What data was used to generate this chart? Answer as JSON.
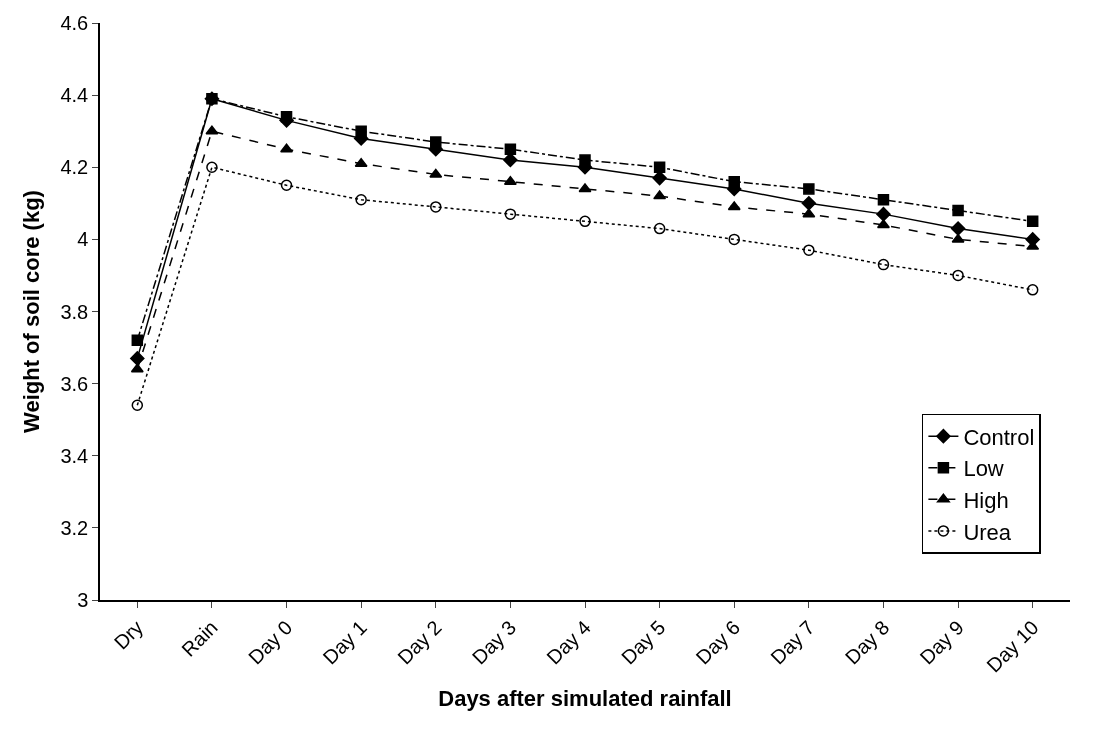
{
  "chart_data": {
    "type": "line",
    "xlabel": "Days after simulated rainfall",
    "ylabel": "Weight of soil core (kg)",
    "categories": [
      "Dry",
      "Rain",
      "Day 0",
      "Day 1",
      "Day 2",
      "Day 3",
      "Day 4",
      "Day 5",
      "Day 6",
      "Day 7",
      "Day 8",
      "Day 9",
      "Day 10"
    ],
    "series": [
      {
        "name": "Control",
        "color": "#000000",
        "marker": "diamond",
        "line_style": "solid",
        "values": [
          3.67,
          4.39,
          4.33,
          4.28,
          4.25,
          4.22,
          4.2,
          4.17,
          4.14,
          4.1,
          4.07,
          4.03,
          4.0
        ]
      },
      {
        "name": "Low",
        "color": "#000000",
        "marker": "square",
        "line_style": "dashdot",
        "values": [
          3.72,
          4.39,
          4.34,
          4.3,
          4.27,
          4.25,
          4.22,
          4.2,
          4.16,
          4.14,
          4.11,
          4.08,
          4.05
        ]
      },
      {
        "name": "High",
        "color": "#000000",
        "marker": "triangle",
        "line_style": "dashed",
        "values": [
          3.64,
          4.3,
          4.25,
          4.21,
          4.18,
          4.16,
          4.14,
          4.12,
          4.09,
          4.07,
          4.04,
          4.0,
          3.98
        ]
      },
      {
        "name": "Urea",
        "color": "#000000",
        "marker": "open circle",
        "line_style": "dotted",
        "values": [
          3.54,
          4.2,
          4.15,
          4.11,
          4.09,
          4.07,
          4.05,
          4.03,
          4.0,
          3.97,
          3.93,
          3.9,
          3.86
        ]
      }
    ],
    "ylim": [
      3,
      4.6
    ],
    "yticks": [
      3,
      3.2,
      3.4,
      3.6,
      3.8,
      4,
      4.2,
      4.4,
      4.6
    ],
    "grid": false,
    "legend": "bottom right"
  }
}
